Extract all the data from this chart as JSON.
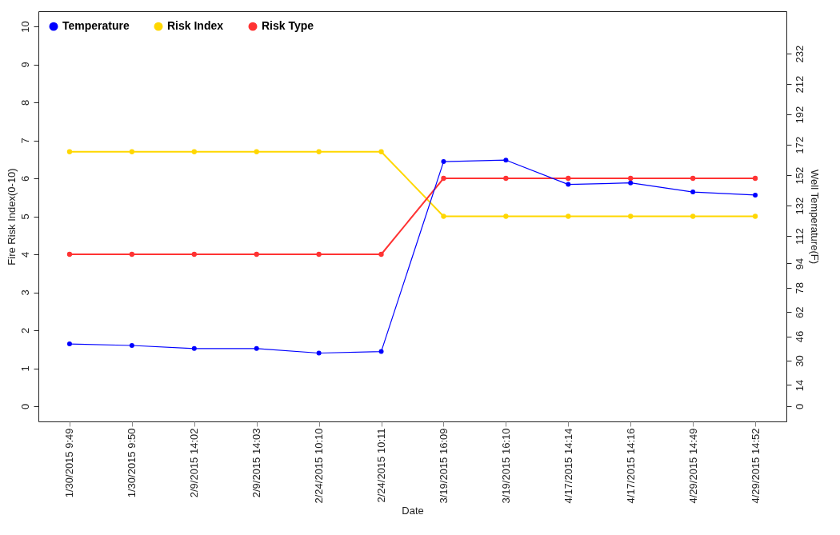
{
  "chart_data": {
    "type": "line",
    "xlabel": "Date",
    "ylabel": "Fire Risk Index(0-10)",
    "y2label": "Well Temperature(F)",
    "categories": [
      "1/30/2015 9:49",
      "1/30/2015 9:50",
      "2/9/2015 14:02",
      "2/9/2015 14:03",
      "2/24/2015 10:10",
      "2/24/2015 10:11",
      "3/19/2015 16:09",
      "3/19/2015 16:10",
      "4/17/2015 14:14",
      "4/17/2015 14:16",
      "4/29/2015 14:49",
      "4/29/2015 14:52"
    ],
    "series": [
      {
        "name": "Temperature",
        "color": "#0000ff",
        "axis": "y2",
        "values": [
          41,
          40,
          38,
          38,
          35,
          36,
          161,
          162,
          146,
          147,
          141,
          139
        ]
      },
      {
        "name": "Risk Index",
        "color": "#ffd700",
        "values": [
          6.7,
          6.7,
          6.7,
          6.7,
          6.7,
          6.7,
          5,
          5,
          5,
          5,
          5,
          5
        ]
      },
      {
        "name": "Risk Type",
        "color": "#ff3333",
        "values": [
          4,
          4,
          4,
          4,
          4,
          4,
          6,
          6,
          6,
          6,
          6,
          6
        ]
      }
    ],
    "ylim": [
      -0.4,
      10.4
    ],
    "yticks": [
      0,
      1,
      2,
      3,
      4,
      5,
      6,
      7,
      8,
      9,
      10
    ],
    "y2lim": [
      -10,
      260
    ],
    "y2ticks": [
      0,
      14,
      30,
      46,
      62,
      78,
      94,
      112,
      132,
      152,
      172,
      192,
      212,
      232
    ],
    "legend": "top left",
    "marker": "circle",
    "line_style": "solid",
    "grid": false
  }
}
